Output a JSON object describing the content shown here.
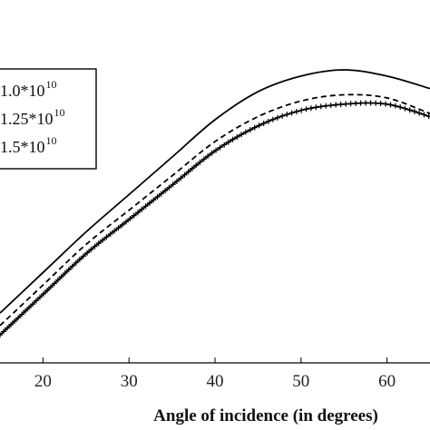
{
  "chart_data": {
    "type": "line",
    "xlabel": "Angle of incidence (in degrees)",
    "ylabel": "",
    "xlim": [
      15,
      65
    ],
    "ylim": [
      0,
      1
    ],
    "x_ticks": [
      "20",
      "30",
      "40",
      "50",
      "60"
    ],
    "grid": false,
    "legend_position": "left",
    "x": [
      15,
      20,
      25,
      30,
      35,
      40,
      45,
      50,
      55,
      60,
      65
    ],
    "series": [
      {
        "name": "1.0*10",
        "exponent": "10",
        "style": "solid",
        "values": [
          0.22,
          0.35,
          0.48,
          0.6,
          0.72,
          0.84,
          0.93,
          0.98,
          1.0,
          0.98,
          0.94
        ]
      },
      {
        "name": "1.25*10",
        "exponent": "10",
        "style": "dashed",
        "values": [
          0.18,
          0.31,
          0.44,
          0.55,
          0.66,
          0.77,
          0.85,
          0.9,
          0.92,
          0.91,
          0.86
        ]
      },
      {
        "name": "1.5*10",
        "exponent": "10",
        "style": "plus-markers",
        "values": [
          0.15,
          0.28,
          0.41,
          0.52,
          0.63,
          0.74,
          0.82,
          0.87,
          0.89,
          0.89,
          0.85
        ]
      }
    ]
  }
}
